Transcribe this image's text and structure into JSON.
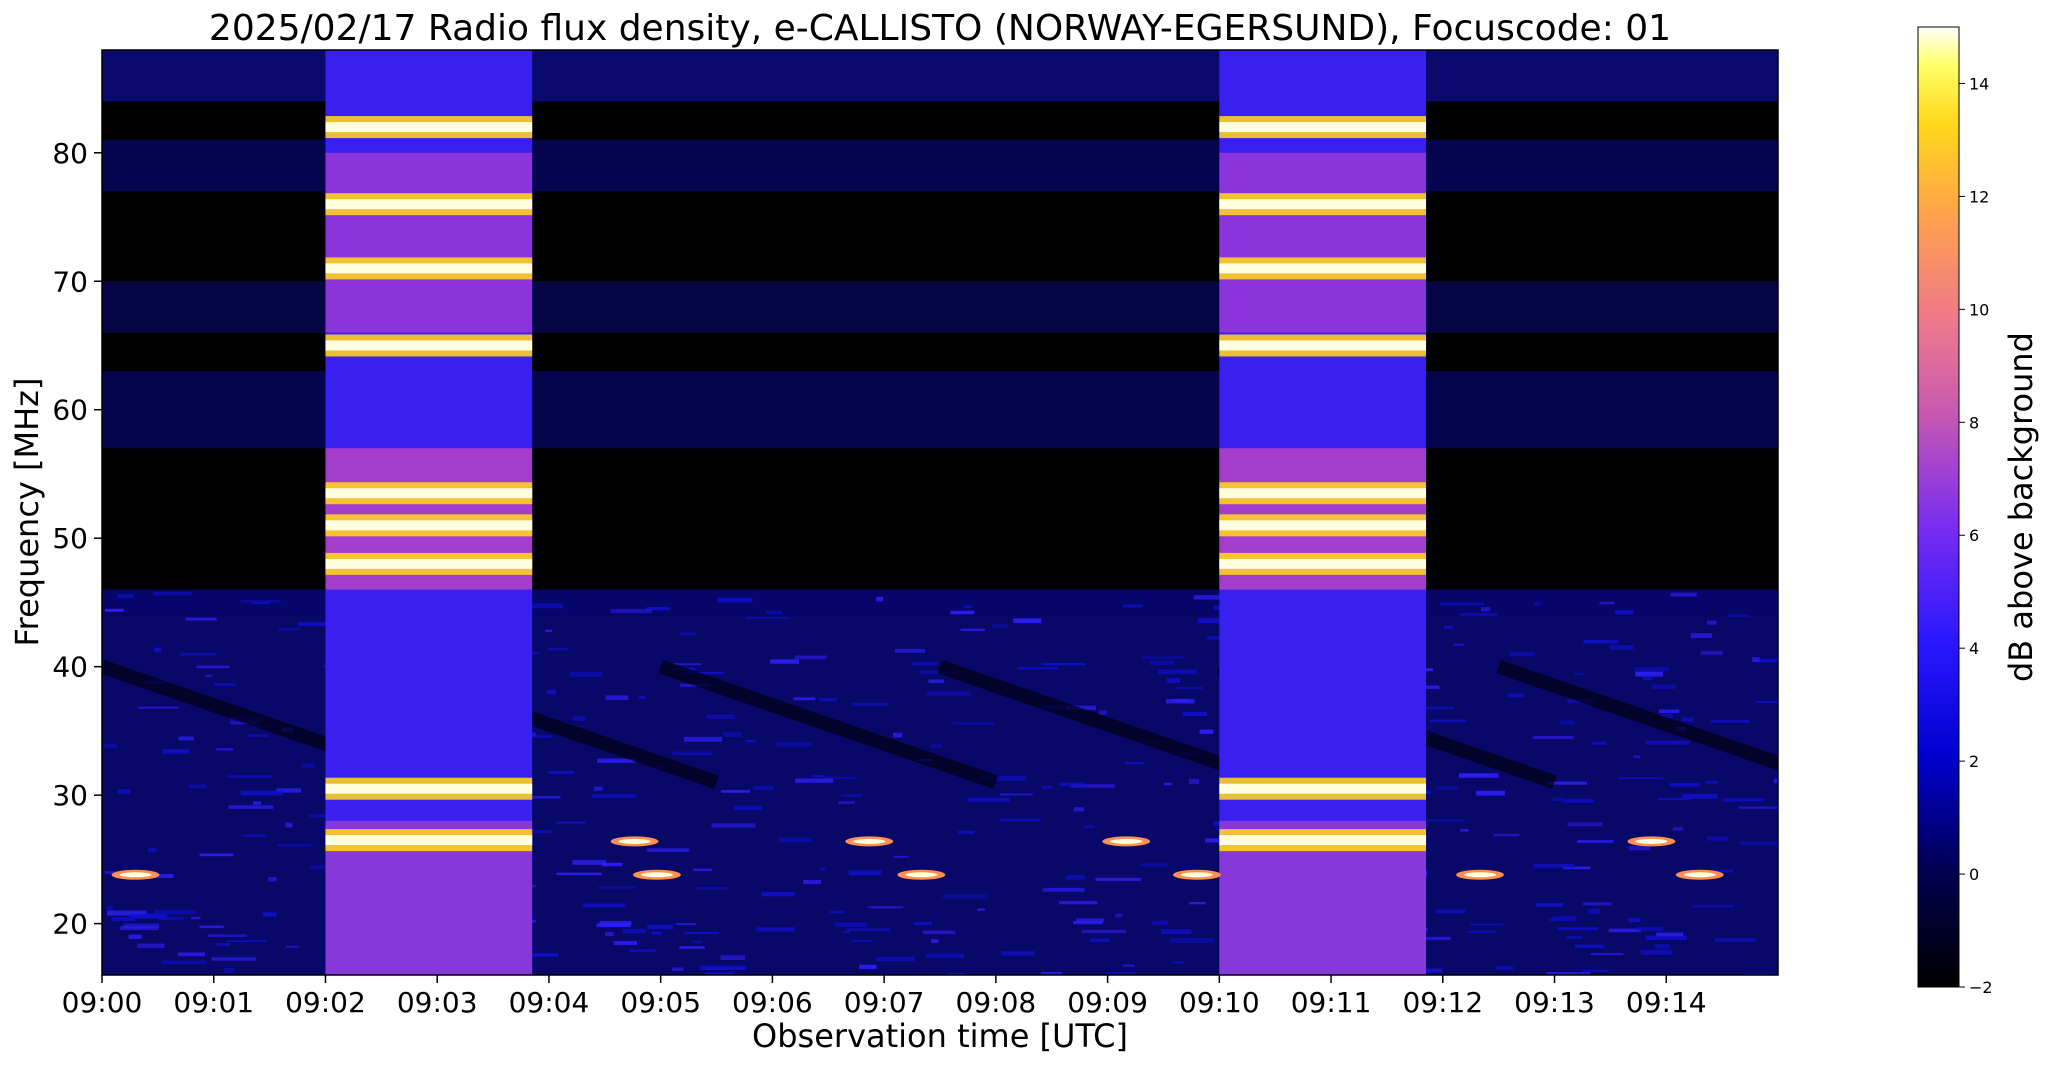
{
  "chart_data": {
    "type": "heatmap",
    "title": "2025/02/17  Radio flux density, e-CALLISTO (NORWAY-EGERSUND), Focuscode: 01",
    "xlabel": "Observation time [UTC]",
    "ylabel": "Frequency [MHz]",
    "colorbar_label": "dB above background",
    "colormap": "gnuplot2",
    "x_ticks": [
      "09:00",
      "09:01",
      "09:02",
      "09:03",
      "09:04",
      "09:05",
      "09:06",
      "09:07",
      "09:08",
      "09:09",
      "09:10",
      "09:11",
      "09:12",
      "09:13",
      "09:14"
    ],
    "x_range_minutes": [
      0,
      15
    ],
    "y_ticks": [
      20,
      30,
      40,
      50,
      60,
      70,
      80
    ],
    "y_range": [
      16,
      88
    ],
    "colorbar_ticks": [
      -2,
      0,
      2,
      4,
      6,
      8,
      10,
      12,
      14
    ],
    "colorbar_range": [
      -2,
      15
    ],
    "calibration_intervals": [
      {
        "start": "09:02:00",
        "end": "09:03:51"
      },
      {
        "start": "09:10:00",
        "end": "09:11:51"
      }
    ],
    "calibration_bright_bands_mhz": [
      82,
      76,
      71,
      65,
      53.5,
      51,
      48,
      30.5,
      26.5
    ],
    "bright_features": [
      {
        "time": "09:00:18",
        "freq_mhz": 23.8
      },
      {
        "time": "09:04:46",
        "freq_mhz": 26.4
      },
      {
        "time": "09:04:58",
        "freq_mhz": 23.8
      },
      {
        "time": "09:06:52",
        "freq_mhz": 26.4
      },
      {
        "time": "09:07:20",
        "freq_mhz": 23.8
      },
      {
        "time": "09:09:10",
        "freq_mhz": 26.4
      },
      {
        "time": "09:09:48",
        "freq_mhz": 23.8
      },
      {
        "time": "09:12:20",
        "freq_mhz": 23.8
      },
      {
        "time": "09:13:52",
        "freq_mhz": 26.4
      },
      {
        "time": "09:14:18",
        "freq_mhz": 23.8
      }
    ]
  }
}
